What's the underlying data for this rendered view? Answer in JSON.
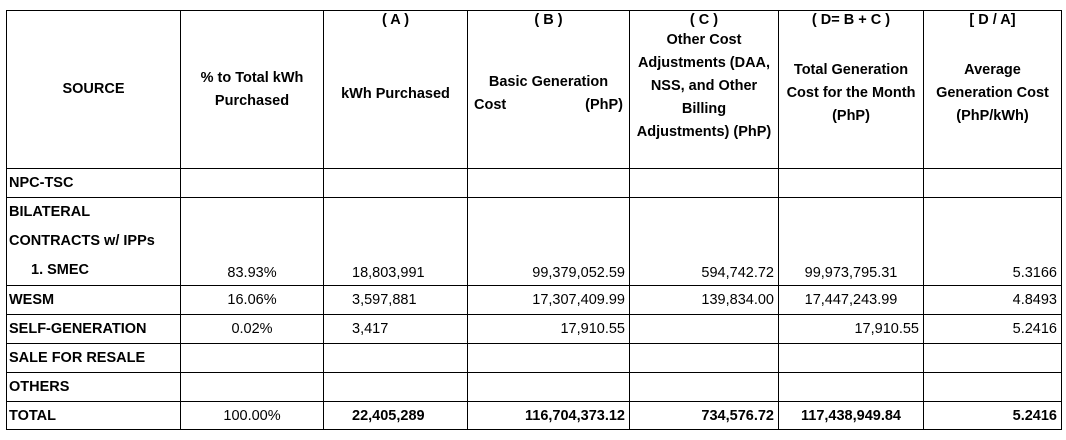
{
  "headers": {
    "source": "SOURCE",
    "pct_to_total": "% to Total kWh Purchased",
    "col_a_code": "( A )",
    "kwh_purchased": "kWh Purchased",
    "col_b_code": "( B )",
    "basic_gen_cost_line1": "Basic Generation",
    "basic_gen_cost_word": "Cost",
    "basic_gen_cost_unit": "(PhP)",
    "col_c_code": "( C )",
    "other_cost_adj": "Other Cost Adjustments (DAA, NSS, and Other Billing Adjustments) (PhP)",
    "col_d_code": "( D= B + C )",
    "total_gen_cost": "Total Generation Cost for the Month (PhP)",
    "col_da_code": "[ D / A]",
    "avg_gen_cost": "Average Generation Cost (PhP/kWh)"
  },
  "rows": {
    "npc": {
      "source": "NPC-TSC"
    },
    "bilateral": {
      "source_line1": "BILATERAL",
      "source_line2": "CONTRACTS w/ IPPs"
    },
    "smec": {
      "source": "1.   SMEC",
      "pct": "83.93%",
      "kwh": "18,803,991",
      "basic": "99,379,052.59",
      "other": "594,742.72",
      "total": "99,973,795.31",
      "avg": "5.3166"
    },
    "wesm": {
      "source": "WESM",
      "pct": "16.06%",
      "kwh": "3,597,881",
      "basic": "17,307,409.99",
      "other": "139,834.00",
      "total": "17,447,243.99",
      "avg": "4.8493"
    },
    "selfgen": {
      "source": "SELF-GENERATION",
      "pct": "0.02%",
      "kwh": "3,417",
      "basic": "17,910.55",
      "other": "",
      "total": "17,910.55",
      "avg": "5.2416"
    },
    "resale": {
      "source": "SALE FOR RESALE"
    },
    "others": {
      "source": "OTHERS"
    },
    "total": {
      "source": "TOTAL",
      "pct": "100.00%",
      "kwh": "22,405,289",
      "basic": "116,704,373.12",
      "other": "734,576.72",
      "total": "117,438,949.84",
      "avg": "5.2416"
    }
  }
}
